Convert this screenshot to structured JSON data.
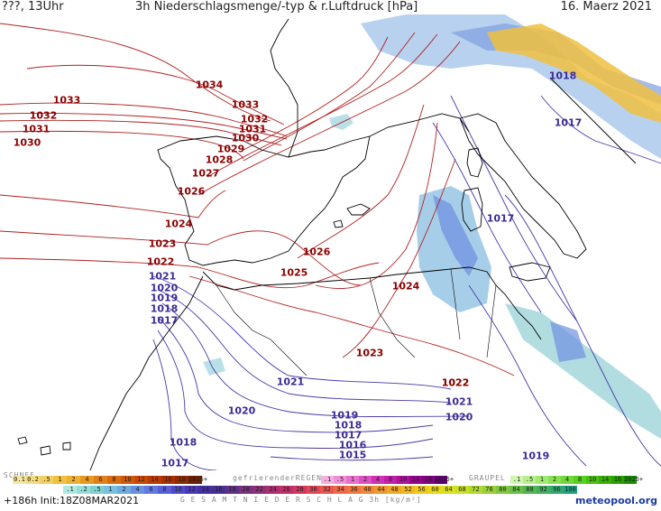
{
  "header": {
    "left": "???, 13Uhr",
    "title": "3h Niederschlagsmenge/-typ & r.Luftdruck [hPa]",
    "date": "16. Maerz 2021"
  },
  "isobar_labels": [
    {
      "text": "1034",
      "type": "hi"
    },
    {
      "text": "1033",
      "type": "hi"
    },
    {
      "text": "1033",
      "type": "hi"
    },
    {
      "text": "1032",
      "type": "hi"
    },
    {
      "text": "1032",
      "type": "hi"
    },
    {
      "text": "1031",
      "type": "hi"
    },
    {
      "text": "1031",
      "type": "hi"
    },
    {
      "text": "1030",
      "type": "hi"
    },
    {
      "text": "1030",
      "type": "hi"
    },
    {
      "text": "1029",
      "type": "hi"
    },
    {
      "text": "1028",
      "type": "hi"
    },
    {
      "text": "1027",
      "type": "hi"
    },
    {
      "text": "1026",
      "type": "hi"
    },
    {
      "text": "1026",
      "type": "hi"
    },
    {
      "text": "1025",
      "type": "hi"
    },
    {
      "text": "1024",
      "type": "hi"
    },
    {
      "text": "1024",
      "type": "hi"
    },
    {
      "text": "1023",
      "type": "hi"
    },
    {
      "text": "1023",
      "type": "hi"
    },
    {
      "text": "1022",
      "type": "hi"
    },
    {
      "text": "1022",
      "type": "hi"
    },
    {
      "text": "1021",
      "type": "lo"
    },
    {
      "text": "1020",
      "type": "lo"
    },
    {
      "text": "1019",
      "type": "lo"
    },
    {
      "text": "1018",
      "type": "lo"
    },
    {
      "text": "1017",
      "type": "lo"
    },
    {
      "text": "1017",
      "type": "lo"
    },
    {
      "text": "1021",
      "type": "lo"
    },
    {
      "text": "1020",
      "type": "lo"
    },
    {
      "text": "1019",
      "type": "lo"
    },
    {
      "text": "1018",
      "type": "lo"
    },
    {
      "text": "1017",
      "type": "lo"
    },
    {
      "text": "1016",
      "type": "lo"
    },
    {
      "text": "1015",
      "type": "lo"
    },
    {
      "text": "1021",
      "type": "lo"
    },
    {
      "text": "1020",
      "type": "lo"
    },
    {
      "text": "1022",
      "type": "hi"
    },
    {
      "text": "1019",
      "type": "lo"
    },
    {
      "text": "1017",
      "type": "lo"
    },
    {
      "text": "1017",
      "type": "lo"
    },
    {
      "text": "1018",
      "type": "lo"
    },
    {
      "text": "1018",
      "type": "lo"
    }
  ],
  "legend": {
    "schnee_label": "SCHNEE",
    "regen_label": "gefrierenderREGEN",
    "graupel_label": "GRAUPEL",
    "gesamt_label": "G E S A M T N I E D E R S C H L A G   3h   [kg/m²]",
    "snow": [
      {
        "v": "0.1",
        "c": "#f5e6a0"
      },
      {
        "v": "0.2",
        "c": "#f3dc80"
      },
      {
        "v": ".5",
        "c": "#f0d060"
      },
      {
        "v": "1",
        "c": "#f0c040"
      },
      {
        "v": "2",
        "c": "#eeb030"
      },
      {
        "v": "4",
        "c": "#e89a20"
      },
      {
        "v": "6",
        "c": "#e08018"
      },
      {
        "v": "8",
        "c": "#d86a10"
      },
      {
        "v": "10",
        "c": "#d05808"
      },
      {
        "v": "12",
        "c": "#c84800"
      },
      {
        "v": "14",
        "c": "#bb3a00"
      },
      {
        "v": "16",
        "c": "#a83000"
      },
      {
        "v": "18",
        "c": "#902800"
      },
      {
        "v": "2025+",
        "c": "#702000"
      }
    ],
    "regen": [
      {
        "v": ".1",
        "c": "#f5b0e0"
      },
      {
        "v": ".5",
        "c": "#f090d8"
      },
      {
        "v": "1",
        "c": "#e870cc"
      },
      {
        "v": "2",
        "c": "#dd50c0"
      },
      {
        "v": "4",
        "c": "#d030b4"
      },
      {
        "v": "8",
        "c": "#c020a8"
      },
      {
        "v": "10",
        "c": "#b0109c"
      },
      {
        "v": "14",
        "c": "#980090"
      },
      {
        "v": "16",
        "c": "#800080"
      },
      {
        "v": "2025+",
        "c": "#600070"
      }
    ],
    "graupel": [
      {
        "v": ".1",
        "c": "#d0f5b0"
      },
      {
        "v": ".5",
        "c": "#b8f090"
      },
      {
        "v": "1",
        "c": "#a0e870"
      },
      {
        "v": "2",
        "c": "#88e050"
      },
      {
        "v": "4",
        "c": "#70d838"
      },
      {
        "v": "8",
        "c": "#58d020"
      },
      {
        "v": "10",
        "c": "#48c010"
      },
      {
        "v": "14",
        "c": "#38b000"
      },
      {
        "v": "16",
        "c": "#28a000"
      },
      {
        "v": "2025+",
        "c": "#189000"
      }
    ],
    "total": [
      {
        "v": ".1",
        "c": "#b0e8e0"
      },
      {
        "v": ".2",
        "c": "#98dcd8"
      },
      {
        "v": ".5",
        "c": "#80d0d0"
      },
      {
        "v": "1",
        "c": "#78c0e0"
      },
      {
        "v": "2",
        "c": "#70a8e0"
      },
      {
        "v": "4",
        "c": "#6890e0"
      },
      {
        "v": "6",
        "c": "#6078e0"
      },
      {
        "v": "8",
        "c": "#5860d8"
      },
      {
        "v": "10",
        "c": "#5048c8"
      },
      {
        "v": "12",
        "c": "#4838b8"
      },
      {
        "v": "14",
        "c": "#4030a0"
      },
      {
        "v": "16",
        "c": "#483090"
      },
      {
        "v": "18",
        "c": "#603088"
      },
      {
        "v": "20",
        "c": "#783080"
      },
      {
        "v": "22",
        "c": "#903078"
      },
      {
        "v": "24",
        "c": "#a83070"
      },
      {
        "v": "26",
        "c": "#c03068"
      },
      {
        "v": "28",
        "c": "#d03860"
      },
      {
        "v": "30",
        "c": "#e04858"
      },
      {
        "v": "32",
        "c": "#e85850"
      },
      {
        "v": "34",
        "c": "#f06848"
      },
      {
        "v": "36",
        "c": "#f07840"
      },
      {
        "v": "40",
        "c": "#f08838"
      },
      {
        "v": "44",
        "c": "#f09830"
      },
      {
        "v": "48",
        "c": "#f0a828"
      },
      {
        "v": "52",
        "c": "#f0b820"
      },
      {
        "v": "56",
        "c": "#f0c818"
      },
      {
        "v": "60",
        "c": "#e8d818"
      },
      {
        "v": "64",
        "c": "#d8e020"
      },
      {
        "v": "68",
        "c": "#c8e028"
      },
      {
        "v": "72",
        "c": "#b0d830"
      },
      {
        "v": "76",
        "c": "#98d038"
      },
      {
        "v": "80",
        "c": "#80c840"
      },
      {
        "v": "84",
        "c": "#68c048"
      },
      {
        "v": "88",
        "c": "#50b850"
      },
      {
        "v": "92",
        "c": "#40b060"
      },
      {
        "v": "96",
        "c": "#30a870"
      },
      {
        "v": "100",
        "c": "#20a080"
      }
    ]
  },
  "footer": {
    "run": "+186h Init:18Z08MAR2021",
    "brand": "meteopool.org"
  },
  "colors": {
    "isobar_high": "#b02020",
    "isobar_low": "#4a3aaa",
    "coast": "#000000",
    "rain": "#9ec8e8"
  }
}
